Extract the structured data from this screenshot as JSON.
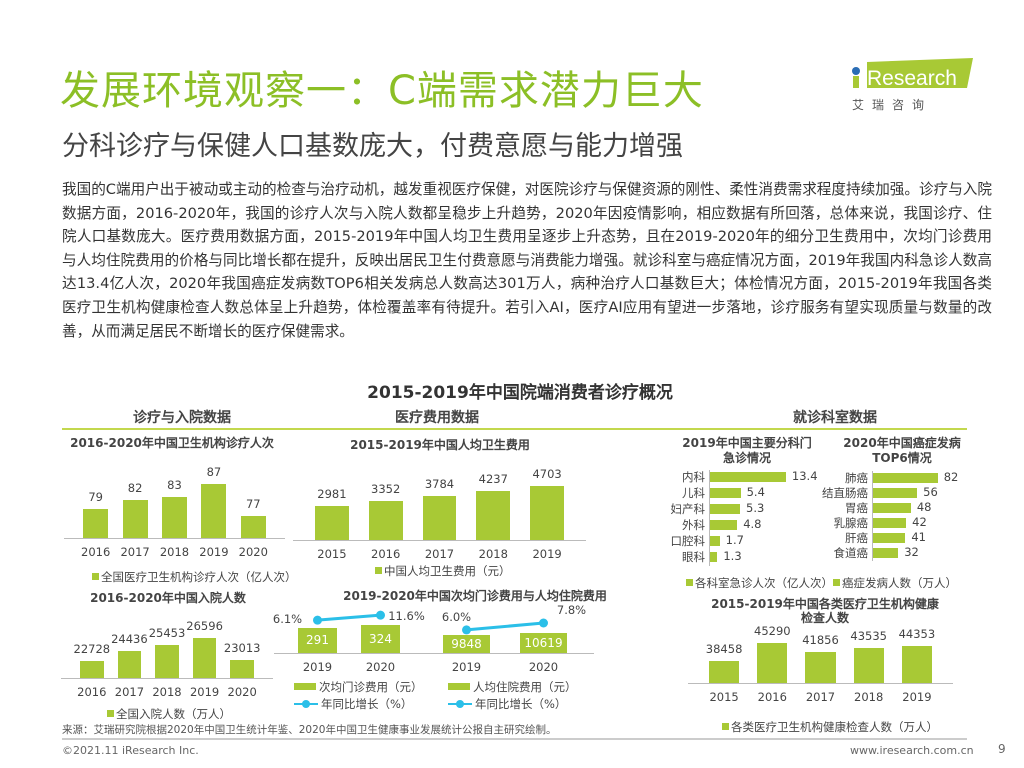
{
  "header": {
    "title": "发展环境观察一：C端需求潜力巨大",
    "subtitle": "分科诊疗与保健人口基数庞大，付费意愿与能力增强"
  },
  "logo": {
    "text": "iResearch",
    "cn": "艾 瑞 咨 询",
    "color": "#a8c935"
  },
  "paragraph": "我国的C端用户出于被动或主动的检查与治疗动机，越发重视医疗保健，对医院诊疗与保健资源的刚性、柔性消费需求程度持续加强。诊疗与入院数据方面，2016-2020年，我国的诊疗人次与入院人数都呈稳步上升趋势，2020年因疫情影响，相应数据有所回落，总体来说，我国诊疗、住院人口基数庞大。医疗费用数据方面，2015-2019年中国人均卫生费用呈逐步上升态势，且在2019-2020年的细分卫生费用中，次均门诊费用与人均住院费用的价格与同比增长都在提升，反映出居民卫生付费意愿与消费能力增强。就诊科室与癌症情况方面，2019年我国内科急诊人数高达13.4亿人次，2020年我国癌症发病数TOP6相关发病总人数高达301万人，病种治疗人口基数巨大；体检情况方面，2015-2019年我国各类医疗卫生机构健康检查人数总体呈上升趋势，体检覆盖率有待提升。若引入AI，医疗AI应用有望进一步落地，诊疗服务有望实现质量与数量的改善，从而满足居民不断增长的医疗保健需求。",
  "section_title": "2015-2019年中国院端消费者诊疗概况",
  "section_headers": [
    "诊疗与入院数据",
    "医疗费用数据",
    "就诊科室数据"
  ],
  "colors": {
    "bar": "#a8c935",
    "line": "#2bbfe8",
    "title": "#8cbf26"
  },
  "chart_data": [
    {
      "type": "bar",
      "title": "2016-2020年中国卫生机构诊疗人次",
      "categories": [
        "2016",
        "2017",
        "2018",
        "2019",
        "2020"
      ],
      "values": [
        79,
        82,
        83,
        87,
        77
      ],
      "legend": "全国医疗卫生机构诊疗人次（亿人次）",
      "ylim": [
        70,
        92
      ]
    },
    {
      "type": "bar",
      "title": "2016-2020年中国入院人数",
      "categories": [
        "2016",
        "2017",
        "2018",
        "2019",
        "2020"
      ],
      "values": [
        22728,
        24436,
        25453,
        26596,
        23013
      ],
      "legend": "全国入院人数（万人）",
      "ylim": [
        20000,
        30000
      ]
    },
    {
      "type": "bar",
      "title": "2015-2019年中国人均卫生费用",
      "categories": [
        "2015",
        "2016",
        "2017",
        "2018",
        "2019"
      ],
      "values": [
        2981,
        3352,
        3784,
        4237,
        4703
      ],
      "legend": "中国人均卫生费用（元）",
      "ylim": [
        0,
        6000
      ]
    },
    {
      "type": "bar+line",
      "title": "2019-2020年中国次均门诊费用与人均住院费用",
      "categories": [
        "2019",
        "2020"
      ],
      "values": [
        291,
        324
      ],
      "line": [
        6.1,
        11.6
      ],
      "line_labels": [
        "6.1%",
        "11.6%"
      ],
      "legend_bar": "次均门诊费用（元）",
      "legend_line": "年同比增长（%）",
      "ylim": [
        0,
        580
      ],
      "ylim2": [
        -30,
        25
      ]
    },
    {
      "type": "bar+line",
      "categories": [
        "2019",
        "2020"
      ],
      "values": [
        9848,
        10619
      ],
      "line": [
        6.0,
        7.8
      ],
      "line_labels": [
        "6.0%",
        "7.8%"
      ],
      "legend_bar": "人均住院费用（元）",
      "legend_line": "年同比增长（%）",
      "ylim": [
        0,
        27000
      ],
      "ylim2": [
        0,
        13
      ]
    },
    {
      "type": "hbar",
      "title": "2019年中国主要分科门急诊情况",
      "categories": [
        "内科",
        "儿科",
        "妇产科",
        "外科",
        "口腔科",
        "眼科"
      ],
      "values": [
        13.4,
        5.4,
        5.3,
        4.8,
        1.7,
        1.3
      ],
      "labels": [
        "13.4",
        "5.4",
        "5.3",
        "4.8",
        "1.7",
        "1.3"
      ],
      "legend": "各科室急诊人次（亿人次）",
      "xlim": [
        0,
        15
      ]
    },
    {
      "type": "hbar",
      "title": "2020年中国癌症发病TOP6情况",
      "categories": [
        "肺癌",
        "结直肠癌",
        "胃癌",
        "乳腺癌",
        "肝癌",
        "食道癌"
      ],
      "values": [
        82,
        56,
        48,
        42,
        41,
        32
      ],
      "labels": [
        "82",
        "56",
        "48",
        "42",
        "41",
        "32"
      ],
      "legend": "癌症发病人数（万人）",
      "xlim": [
        0,
        90
      ]
    },
    {
      "type": "bar",
      "title": "2015-2019年中国各类医疗卫生机构健康检查人数",
      "categories": [
        "2015",
        "2016",
        "2017",
        "2018",
        "2019"
      ],
      "values": [
        38458,
        45290,
        41856,
        43535,
        44353
      ],
      "legend": "各类医疗卫生机构健康检查人数（万人）",
      "ylim": [
        30000,
        50000
      ]
    }
  ],
  "chart_titles": {
    "c1": "2016-2020年中国卫生机构诊疗人次",
    "c2": "2016-2020年中国入院人数",
    "c3": "2015-2019年中国人均卫生费用",
    "c4": "2019-2020年中国次均门诊费用与人均住院费用",
    "c6a": "2019年中国主要分科门",
    "c6b": "急诊情况",
    "c7a": "2020年中国癌症发病",
    "c7b": "TOP6情况",
    "c8a": "2015-2019年中国各类医疗卫生机构健康",
    "c8b": "检查人数"
  },
  "footer": {
    "source": "来源：艾瑞研究院根据2020年中国卫生统计年鉴、2020年中国卫生健康事业发展统计公报自主研究绘制。",
    "copyright": "©2021.11 iResearch Inc.",
    "website": "www.iresearch.com.cn",
    "page": "9"
  }
}
